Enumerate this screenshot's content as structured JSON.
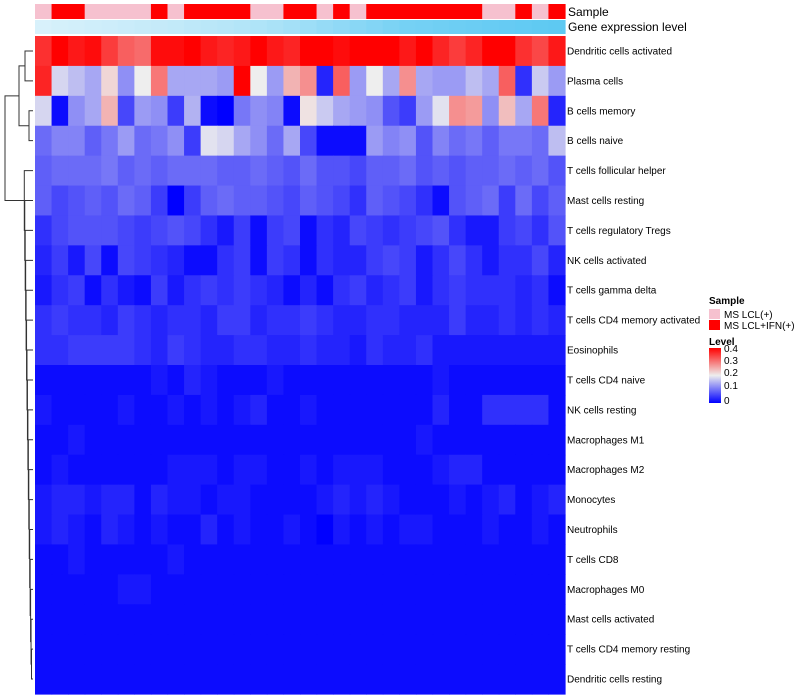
{
  "chart_data": {
    "type": "heatmap",
    "title": "",
    "top_annotations": [
      {
        "name": "Sample",
        "values": [
          "MS LCL(+)",
          "MS LCL+IFN(+)",
          "MS LCL+IFN(+)",
          "MS LCL(+)",
          "MS LCL(+)",
          "MS LCL(+)",
          "MS LCL(+)",
          "MS LCL+IFN(+)",
          "MS LCL(+)",
          "MS LCL+IFN(+)",
          "MS LCL+IFN(+)",
          "MS LCL+IFN(+)",
          "MS LCL+IFN(+)",
          "MS LCL(+)",
          "MS LCL(+)",
          "MS LCL+IFN(+)",
          "MS LCL+IFN(+)",
          "MS LCL(+)",
          "MS LCL+IFN(+)",
          "MS LCL(+)",
          "MS LCL+IFN(+)",
          "MS LCL+IFN(+)",
          "MS LCL+IFN(+)",
          "MS LCL+IFN(+)",
          "MS LCL+IFN(+)",
          "MS LCL+IFN(+)",
          "MS LCL+IFN(+)",
          "MS LCL(+)",
          "MS LCL(+)",
          "MS LCL+IFN(+)",
          "MS LCL(+)",
          "MS LCL+IFN(+)"
        ]
      },
      {
        "name": "Gene expression level",
        "values": [
          0.05,
          0.08,
          0.1,
          0.12,
          0.14,
          0.16,
          0.18,
          0.2,
          0.22,
          0.25,
          0.28,
          0.3,
          0.33,
          0.36,
          0.4,
          0.45,
          0.5,
          0.55,
          0.6,
          0.65,
          0.7,
          0.75,
          0.8,
          0.82,
          0.84,
          0.86,
          0.88,
          0.9,
          0.92,
          0.94,
          0.96,
          0.98
        ]
      }
    ],
    "rows": [
      "Dendritic cells activated",
      "Plasma cells",
      "B cells memory",
      "B cells naive",
      "T cells follicular helper",
      "Mast cells resting",
      "T cells regulatory  Tregs",
      "NK cells activated",
      "T cells gamma delta",
      "T cells CD4 memory activated",
      "Eosinophils",
      "T cells CD4 naive",
      "NK cells resting",
      "Macrophages M1",
      "Macrophages M2",
      "Monocytes",
      "Neutrophils",
      "T cells CD8",
      "Macrophages M0",
      "Mast cells activated",
      "T cells CD4 memory resting",
      "Dendritic cells resting"
    ],
    "n_columns": 32,
    "values": [
      [
        0.36,
        0.42,
        0.38,
        0.39,
        0.35,
        0.32,
        0.31,
        0.39,
        0.39,
        0.4,
        0.38,
        0.37,
        0.38,
        0.4,
        0.38,
        0.37,
        0.4,
        0.41,
        0.39,
        0.4,
        0.4,
        0.41,
        0.38,
        0.4,
        0.37,
        0.35,
        0.37,
        0.4,
        0.41,
        0.36,
        0.34,
        0.38
      ],
      [
        0.37,
        0.18,
        0.16,
        0.14,
        0.22,
        0.12,
        0.2,
        0.3,
        0.14,
        0.14,
        0.14,
        0.13,
        0.4,
        0.2,
        0.13,
        0.25,
        0.28,
        0.03,
        0.32,
        0.13,
        0.2,
        0.14,
        0.28,
        0.14,
        0.13,
        0.13,
        0.16,
        0.14,
        0.32,
        0.04,
        0.17,
        0.13
      ],
      [
        0.18,
        0.01,
        0.12,
        0.14,
        0.25,
        0.06,
        0.13,
        0.12,
        0.05,
        0.15,
        0.01,
        0.0,
        0.1,
        0.12,
        0.11,
        0.01,
        0.21,
        0.17,
        0.14,
        0.13,
        0.12,
        0.07,
        0.05,
        0.13,
        0.19,
        0.28,
        0.27,
        0.12,
        0.24,
        0.14,
        0.3,
        0.03
      ],
      [
        0.09,
        0.11,
        0.11,
        0.08,
        0.1,
        0.13,
        0.09,
        0.1,
        0.12,
        0.05,
        0.19,
        0.18,
        0.14,
        0.12,
        0.09,
        0.14,
        0.06,
        0.01,
        0.01,
        0.01,
        0.13,
        0.11,
        0.12,
        0.07,
        0.11,
        0.09,
        0.1,
        0.08,
        0.1,
        0.1,
        0.09,
        0.16
      ],
      [
        0.08,
        0.09,
        0.09,
        0.09,
        0.1,
        0.08,
        0.09,
        0.08,
        0.09,
        0.09,
        0.09,
        0.08,
        0.08,
        0.09,
        0.08,
        0.07,
        0.09,
        0.07,
        0.07,
        0.06,
        0.08,
        0.08,
        0.09,
        0.07,
        0.08,
        0.07,
        0.08,
        0.08,
        0.09,
        0.08,
        0.09,
        0.07
      ],
      [
        0.08,
        0.06,
        0.07,
        0.08,
        0.07,
        0.09,
        0.08,
        0.05,
        0.0,
        0.05,
        0.08,
        0.09,
        0.08,
        0.08,
        0.07,
        0.06,
        0.08,
        0.07,
        0.06,
        0.04,
        0.08,
        0.07,
        0.06,
        0.04,
        0.01,
        0.07,
        0.08,
        0.09,
        0.05,
        0.09,
        0.06,
        0.08
      ],
      [
        0.04,
        0.06,
        0.07,
        0.07,
        0.07,
        0.06,
        0.05,
        0.06,
        0.07,
        0.06,
        0.04,
        0.02,
        0.05,
        0.01,
        0.05,
        0.06,
        0.01,
        0.04,
        0.03,
        0.06,
        0.05,
        0.04,
        0.05,
        0.06,
        0.07,
        0.04,
        0.02,
        0.02,
        0.05,
        0.06,
        0.04,
        0.07
      ],
      [
        0.03,
        0.05,
        0.02,
        0.06,
        0.01,
        0.06,
        0.05,
        0.04,
        0.03,
        0.01,
        0.01,
        0.04,
        0.05,
        0.01,
        0.05,
        0.04,
        0.01,
        0.04,
        0.03,
        0.03,
        0.05,
        0.06,
        0.05,
        0.02,
        0.04,
        0.06,
        0.04,
        0.02,
        0.04,
        0.04,
        0.06,
        0.03
      ],
      [
        0.02,
        0.04,
        0.05,
        0.01,
        0.04,
        0.02,
        0.01,
        0.05,
        0.02,
        0.04,
        0.05,
        0.04,
        0.05,
        0.04,
        0.03,
        0.01,
        0.03,
        0.01,
        0.04,
        0.05,
        0.03,
        0.04,
        0.05,
        0.02,
        0.04,
        0.05,
        0.04,
        0.04,
        0.04,
        0.03,
        0.04,
        0.01
      ],
      [
        0.04,
        0.05,
        0.04,
        0.04,
        0.03,
        0.05,
        0.04,
        0.03,
        0.04,
        0.04,
        0.03,
        0.05,
        0.05,
        0.03,
        0.04,
        0.04,
        0.05,
        0.04,
        0.03,
        0.03,
        0.04,
        0.04,
        0.03,
        0.03,
        0.03,
        0.05,
        0.03,
        0.03,
        0.04,
        0.03,
        0.04,
        0.03
      ],
      [
        0.04,
        0.04,
        0.05,
        0.05,
        0.05,
        0.05,
        0.04,
        0.03,
        0.05,
        0.04,
        0.03,
        0.03,
        0.04,
        0.04,
        0.03,
        0.03,
        0.04,
        0.03,
        0.03,
        0.02,
        0.04,
        0.03,
        0.03,
        0.04,
        0.02,
        0.02,
        0.02,
        0.02,
        0.02,
        0.02,
        0.02,
        0.02
      ],
      [
        0.01,
        0.01,
        0.01,
        0.01,
        0.01,
        0.01,
        0.01,
        0.02,
        0.01,
        0.03,
        0.02,
        0.01,
        0.01,
        0.01,
        0.02,
        0.01,
        0.01,
        0.01,
        0.01,
        0.01,
        0.01,
        0.01,
        0.01,
        0.01,
        0.02,
        0.01,
        0.01,
        0.01,
        0.01,
        0.01,
        0.01,
        0.01
      ],
      [
        0.02,
        0.01,
        0.01,
        0.01,
        0.01,
        0.02,
        0.01,
        0.01,
        0.02,
        0.01,
        0.02,
        0.01,
        0.02,
        0.03,
        0.01,
        0.01,
        0.02,
        0.01,
        0.01,
        0.01,
        0.01,
        0.01,
        0.01,
        0.01,
        0.03,
        0.01,
        0.01,
        0.04,
        0.04,
        0.04,
        0.04,
        0.01
      ],
      [
        0.01,
        0.01,
        0.02,
        0.01,
        0.01,
        0.01,
        0.01,
        0.01,
        0.01,
        0.01,
        0.01,
        0.01,
        0.01,
        0.01,
        0.01,
        0.01,
        0.01,
        0.01,
        0.01,
        0.01,
        0.01,
        0.01,
        0.01,
        0.02,
        0.01,
        0.01,
        0.01,
        0.01,
        0.01,
        0.01,
        0.01,
        0.01
      ],
      [
        0.01,
        0.02,
        0.01,
        0.01,
        0.01,
        0.01,
        0.01,
        0.01,
        0.02,
        0.02,
        0.02,
        0.01,
        0.02,
        0.02,
        0.01,
        0.01,
        0.02,
        0.01,
        0.02,
        0.02,
        0.02,
        0.01,
        0.01,
        0.01,
        0.02,
        0.03,
        0.03,
        0.01,
        0.01,
        0.01,
        0.01,
        0.01
      ],
      [
        0.02,
        0.03,
        0.03,
        0.02,
        0.03,
        0.03,
        0.01,
        0.03,
        0.02,
        0.02,
        0.01,
        0.02,
        0.02,
        0.01,
        0.01,
        0.01,
        0.01,
        0.02,
        0.03,
        0.02,
        0.03,
        0.02,
        0.01,
        0.01,
        0.01,
        0.02,
        0.01,
        0.02,
        0.03,
        0.01,
        0.02,
        0.03
      ],
      [
        0.02,
        0.03,
        0.02,
        0.01,
        0.03,
        0.02,
        0.01,
        0.02,
        0.01,
        0.01,
        0.03,
        0.01,
        0.02,
        0.01,
        0.01,
        0.02,
        0.01,
        0.0,
        0.02,
        0.01,
        0.02,
        0.01,
        0.02,
        0.02,
        0.01,
        0.01,
        0.01,
        0.02,
        0.01,
        0.01,
        0.02,
        0.01
      ],
      [
        0.01,
        0.01,
        0.02,
        0.01,
        0.01,
        0.01,
        0.01,
        0.01,
        0.02,
        0.01,
        0.01,
        0.01,
        0.01,
        0.01,
        0.01,
        0.01,
        0.01,
        0.01,
        0.01,
        0.01,
        0.01,
        0.01,
        0.01,
        0.01,
        0.01,
        0.01,
        0.01,
        0.01,
        0.01,
        0.01,
        0.01,
        0.01
      ],
      [
        0.01,
        0.01,
        0.01,
        0.01,
        0.01,
        0.02,
        0.02,
        0.01,
        0.01,
        0.01,
        0.01,
        0.01,
        0.01,
        0.01,
        0.01,
        0.01,
        0.01,
        0.01,
        0.01,
        0.01,
        0.01,
        0.01,
        0.01,
        0.01,
        0.01,
        0.01,
        0.01,
        0.01,
        0.01,
        0.01,
        0.01,
        0.01
      ],
      [
        0.01,
        0.01,
        0.01,
        0.01,
        0.01,
        0.01,
        0.01,
        0.01,
        0.01,
        0.01,
        0.01,
        0.01,
        0.01,
        0.01,
        0.01,
        0.01,
        0.01,
        0.01,
        0.01,
        0.01,
        0.01,
        0.01,
        0.01,
        0.01,
        0.01,
        0.01,
        0.01,
        0.01,
        0.01,
        0.01,
        0.01,
        0.01
      ],
      [
        0.01,
        0.01,
        0.01,
        0.01,
        0.01,
        0.01,
        0.01,
        0.01,
        0.01,
        0.01,
        0.01,
        0.01,
        0.01,
        0.01,
        0.01,
        0.01,
        0.01,
        0.01,
        0.01,
        0.01,
        0.01,
        0.01,
        0.01,
        0.01,
        0.01,
        0.01,
        0.01,
        0.01,
        0.01,
        0.01,
        0.01,
        0.01
      ],
      [
        0.01,
        0.01,
        0.01,
        0.01,
        0.01,
        0.01,
        0.01,
        0.01,
        0.01,
        0.01,
        0.01,
        0.01,
        0.01,
        0.01,
        0.01,
        0.01,
        0.01,
        0.01,
        0.01,
        0.01,
        0.01,
        0.01,
        0.01,
        0.01,
        0.01,
        0.01,
        0.01,
        0.01,
        0.01,
        0.01,
        0.01,
        0.01
      ]
    ],
    "color_scale": {
      "min": 0,
      "mid": 0.2,
      "max": 0.4,
      "low_color": "#0000ff",
      "mid_color": "#eeeeee",
      "high_color": "#ff0000"
    },
    "annotation_colors": {
      "sample": {
        "MS LCL(+)": "#f6c1cf",
        "MS LCL+IFN(+)": "#ff0000"
      },
      "gene_expression_low": "#dff3fb",
      "gene_expression_high": "#5bc8f2"
    },
    "dendrogram": "rows (left)",
    "legend": {
      "position": "right",
      "sample": {
        "title": "Sample",
        "items": [
          "MS LCL(+)",
          "MS LCL+IFN(+)"
        ]
      },
      "level": {
        "title": "Level",
        "ticks": [
          "0.4",
          "0.3",
          "0.2",
          "0.1",
          "0"
        ]
      }
    }
  }
}
